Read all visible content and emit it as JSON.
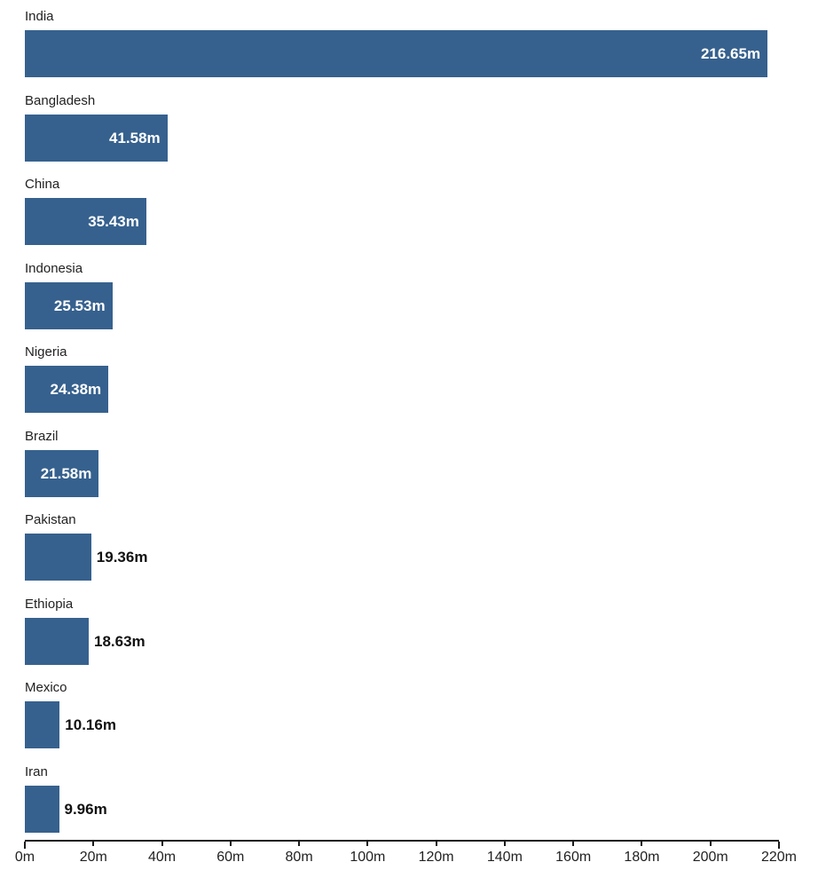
{
  "chart_data": {
    "type": "bar",
    "orientation": "horizontal",
    "title": "",
    "xlabel": "",
    "ylabel": "",
    "unit": "m",
    "categories": [
      "India",
      "Bangladesh",
      "China",
      "Indonesia",
      "Nigeria",
      "Brazil",
      "Pakistan",
      "Ethiopia",
      "Mexico",
      "Iran"
    ],
    "values": [
      216.65,
      41.58,
      35.43,
      25.53,
      24.38,
      21.58,
      19.36,
      18.63,
      10.16,
      9.96
    ],
    "value_labels": [
      "216.65m",
      "41.58m",
      "35.43m",
      "25.53m",
      "24.38m",
      "21.58m",
      "19.36m",
      "18.63m",
      "10.16m",
      "9.96m"
    ],
    "xlim": [
      0,
      220
    ],
    "x_ticks": [
      0,
      20,
      40,
      60,
      80,
      100,
      120,
      140,
      160,
      180,
      200,
      220
    ],
    "x_tick_labels": [
      "0m",
      "20m",
      "40m",
      "60m",
      "80m",
      "100m",
      "120m",
      "140m",
      "160m",
      "180m",
      "200m",
      "220m"
    ],
    "grid": false,
    "legend": null,
    "colors": {
      "bar": "#36618E",
      "value_inside": "#FFFFFF",
      "value_outside": "#111111",
      "category_label": "#222222",
      "axis": "#1A1A1A",
      "background": "#FFFFFF"
    }
  }
}
